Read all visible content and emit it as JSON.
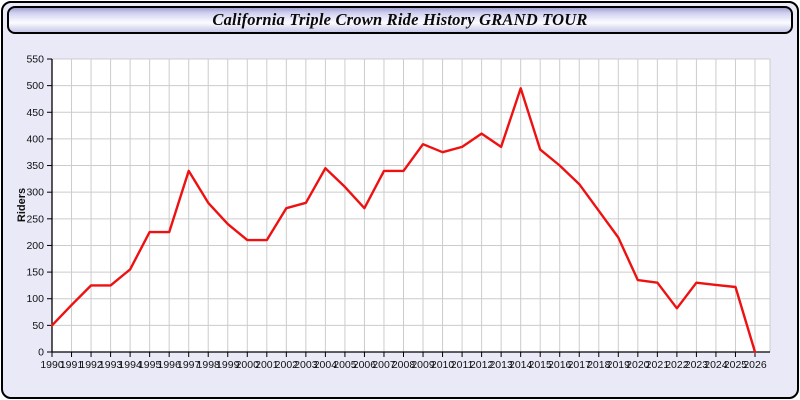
{
  "window": {
    "title": "California Triple Crown Ride History GRAND TOUR"
  },
  "colors": {
    "line": "#ee1111",
    "panel_bg": "#e9e9f8",
    "plot_bg": "#ffffff",
    "grid": "#cccccc",
    "axis": "#000000",
    "tick_label": "#111111"
  },
  "chart_data": {
    "type": "line",
    "title": "California Triple Crown Ride History GRAND TOUR",
    "xlabel": "",
    "ylabel": "Riders",
    "x": [
      1990,
      1991,
      1992,
      1993,
      1994,
      1995,
      1996,
      1997,
      1998,
      1999,
      2000,
      2001,
      2002,
      2003,
      2004,
      2005,
      2006,
      2007,
      2008,
      2009,
      2010,
      2011,
      2012,
      2013,
      2014,
      2015,
      2016,
      2017,
      2018,
      2019,
      2020,
      2021,
      2022,
      2023,
      2024,
      2025,
      2026
    ],
    "values": [
      50,
      88,
      125,
      125,
      155,
      225,
      225,
      340,
      280,
      240,
      210,
      210,
      270,
      280,
      345,
      310,
      270,
      340,
      340,
      390,
      375,
      385,
      410,
      385,
      495,
      380,
      350,
      315,
      265,
      215,
      135,
      130,
      82,
      130,
      126,
      122,
      0
    ],
    "xlim": [
      1990,
      2026
    ],
    "ylim": [
      0,
      550
    ],
    "ytick_step": 50,
    "grid": true,
    "legend": "none",
    "line_color": "#ee1111"
  }
}
